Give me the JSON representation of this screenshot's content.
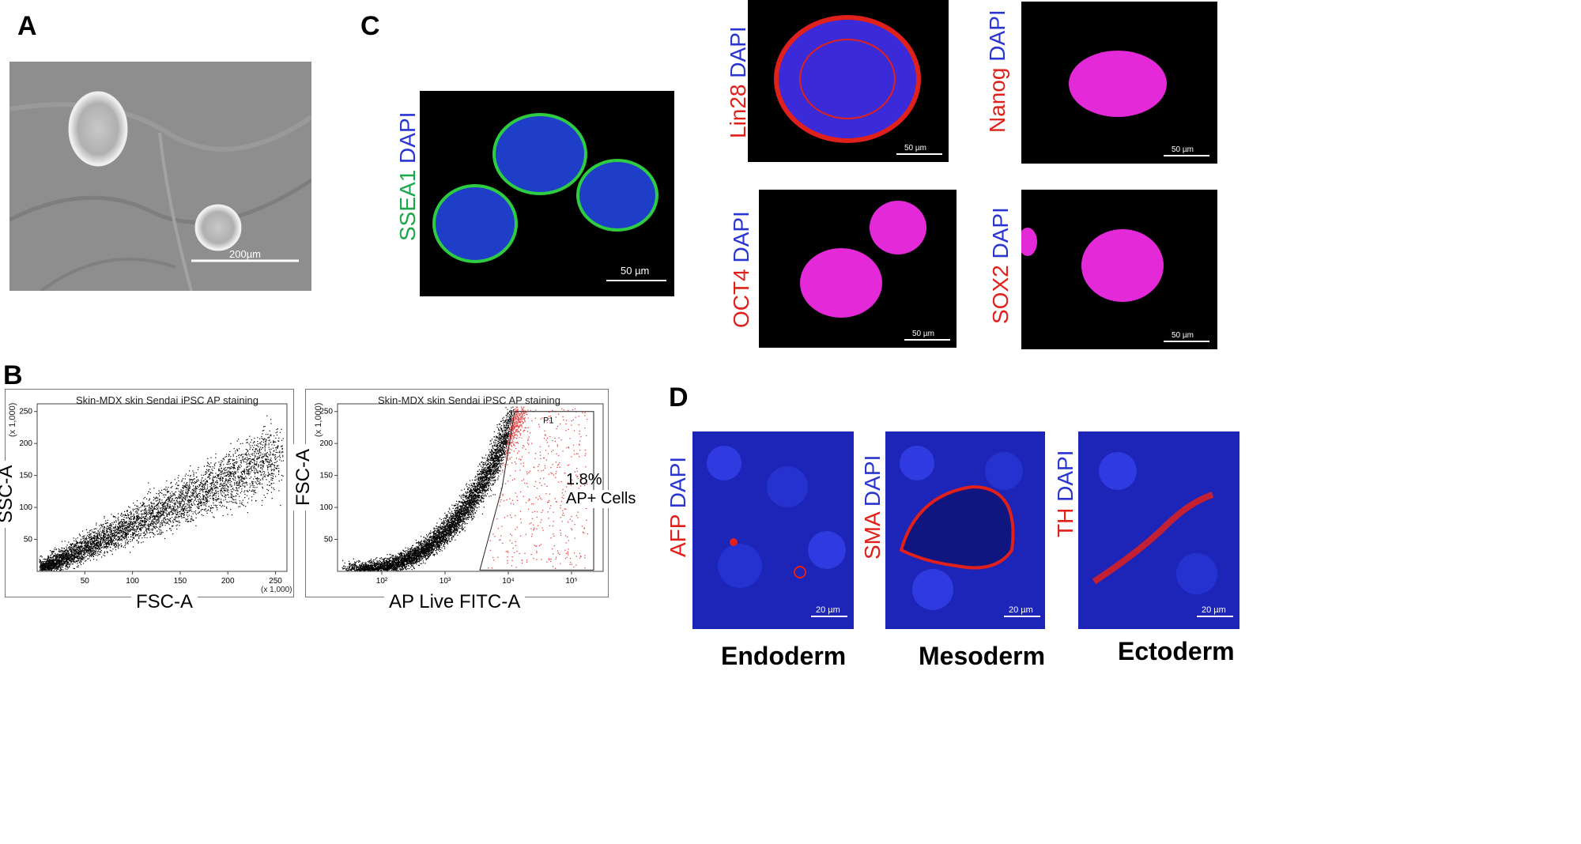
{
  "panels": {
    "a": {
      "letter": "A",
      "scale": "200µm"
    },
    "b": {
      "letter": "B"
    },
    "c": {
      "letter": "C"
    },
    "d": {
      "letter": "D"
    }
  },
  "stains": {
    "ssea1": {
      "marker": "SSEA1",
      "dapi": "DAPI",
      "scale": "50 µm"
    },
    "lin28": {
      "marker": "Lin28",
      "dapi": "DAPI",
      "scale": "50 µm"
    },
    "nanog": {
      "marker": "Nanog",
      "dapi": "DAPI",
      "scale": "50 µm"
    },
    "oct4": {
      "marker": "OCT4",
      "dapi": "DAPI",
      "scale": "50 µm"
    },
    "sox2": {
      "marker": "SOX2",
      "dapi": "DAPI",
      "scale": "50 µm"
    },
    "afp": {
      "marker": "AFP",
      "dapi": "DAPI",
      "scale": "20 µm",
      "germ": "Endoderm"
    },
    "sma": {
      "marker": "SMA",
      "dapi": "DAPI",
      "scale": "20 µm",
      "germ": "Mesoderm"
    },
    "th": {
      "marker": "TH",
      "dapi": "DAPI",
      "scale": "20 µm",
      "germ": "Ectoderm"
    }
  },
  "colors": {
    "marker_red": "#e0201b",
    "marker_green": "#1ea64b",
    "dapi_blue": "#2a35d0",
    "gate_red": "#e64545"
  },
  "chart_data": [
    {
      "type": "scatter",
      "title": "Skin-MDX skin Sendai iPSC AP staining",
      "xlabel": "FSC-A",
      "ylabel": "SSC-A",
      "x_multiplier": "(x 1,000)",
      "y_multiplier": "(x 1,000)",
      "xticks": [
        "50",
        "100",
        "150",
        "200",
        "250"
      ],
      "yticks": [
        "50",
        "100",
        "150",
        "200",
        "250"
      ],
      "xlim": [
        0,
        262
      ],
      "ylim": [
        0,
        262
      ]
    },
    {
      "type": "scatter",
      "title": "Skin-MDX skin Sendai iPSC AP staining",
      "xlabel": "AP Live FITC-A",
      "ylabel": "FSC-A",
      "y_multiplier": "(x 1,000)",
      "xscale": "log",
      "xticks": [
        "10²",
        "10³",
        "10⁴",
        "10⁵"
      ],
      "yticks": [
        "50",
        "100",
        "150",
        "200",
        "250"
      ],
      "ylim": [
        0,
        262
      ],
      "gate": {
        "name": "P1",
        "percent_label": "1.8%",
        "population_label": "AP+ Cells"
      }
    }
  ]
}
